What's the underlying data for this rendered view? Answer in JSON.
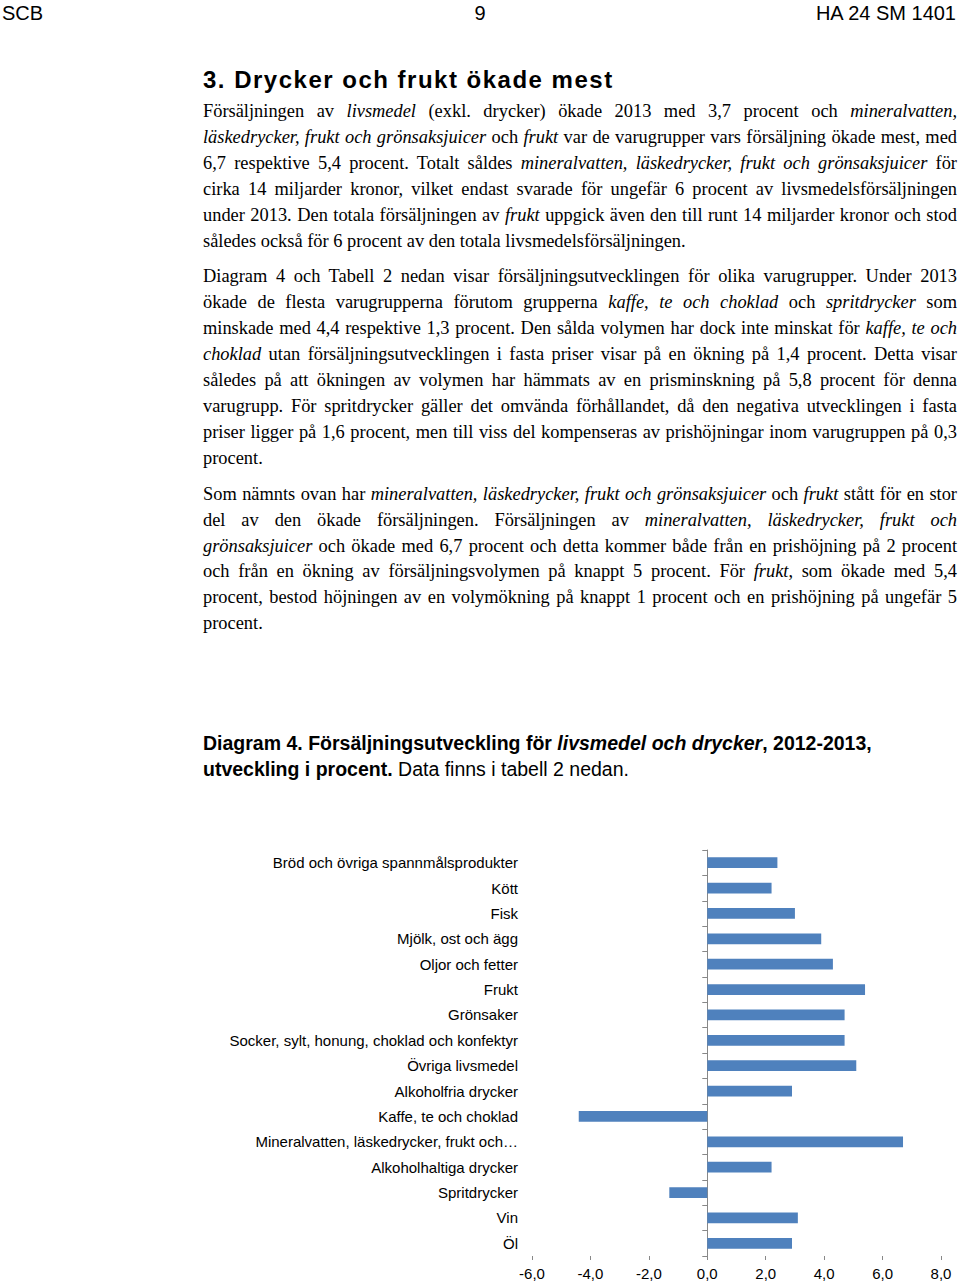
{
  "header": {
    "left": "SCB",
    "center": "9",
    "right": "HA 24 SM 1401"
  },
  "heading": "3. Drycker och frukt ökade mest",
  "paragraphs": [
    [
      {
        "text": "Försäljningen av "
      },
      {
        "text": "livsmedel",
        "italic": true
      },
      {
        "text": " (exkl. drycker) ökade 2013 med 3,7 procent och "
      },
      {
        "text": "mineralvatten, läskedrycker, frukt och grönsaksjuicer",
        "italic": true
      },
      {
        "text": " och "
      },
      {
        "text": "frukt",
        "italic": true
      },
      {
        "text": " var de varugrupper vars försäljning ökade mest, med 6,7 respektive 5,4 procent. Totalt såldes "
      },
      {
        "text": "mineralvatten, läskedrycker, frukt och grönsaksjuicer",
        "italic": true
      },
      {
        "text": " för cirka 14 miljarder kronor, vilket endast svarade för ungefär 6 procent av livsmedelsförsäljningen under 2013. Den totala försäljningen av "
      },
      {
        "text": "frukt",
        "italic": true
      },
      {
        "text": " uppgick även den till runt 14 miljarder kronor och stod således också för 6 procent av den totala livsmedelsförsäljningen."
      }
    ],
    [
      {
        "text": "Diagram 4 och Tabell 2 nedan visar försäljningsutvecklingen för olika varugrupper. Under 2013 ökade de flesta varugrupperna förutom grupperna "
      },
      {
        "text": "kaffe, te och choklad",
        "italic": true
      },
      {
        "text": " och "
      },
      {
        "text": "spritdrycker",
        "italic": true
      },
      {
        "text": " som minskade med 4,4 respektive 1,3 procent. Den sålda volymen har dock inte minskat för "
      },
      {
        "text": "kaffe, te och choklad",
        "italic": true
      },
      {
        "text": " utan försäljningsutvecklingen i fasta priser visar på en ökning på 1,4 procent. Detta visar således på att ökningen av volymen har hämmats av en prisminskning på 5,8 procent för denna varugrupp. För spritdrycker gäller det omvända förhållandet, då den negativa utvecklingen i fasta priser ligger på 1,6 procent, men till viss del kompenseras av prishöjningar inom varugruppen på 0,3 procent."
      }
    ],
    [
      {
        "text": "Som nämnts ovan har "
      },
      {
        "text": "mineralvatten, läskedrycker, frukt och grönsaksjuicer",
        "italic": true
      },
      {
        "text": " och "
      },
      {
        "text": "frukt",
        "italic": true
      },
      {
        "text": " stått för en stor del av den ökade försäljningen. Försäljningen av "
      },
      {
        "text": "mineralvatten, läskedrycker, frukt och grönsaksjuicer",
        "italic": true
      },
      {
        "text": " och ökade med 6,7 procent och detta kommer både från en prishöjning på 2 procent och från en ökning av försäljningsvolymen på knappt 5 procent. För "
      },
      {
        "text": "frukt",
        "italic": true
      },
      {
        "text": ", som ökade med 5,4 procent, bestod höjningen av en volymökning på knappt 1 procent och en prishöjning på ungefär 5 procent."
      }
    ]
  ],
  "caption": [
    {
      "text": "Diagram 4. Försäljningsutveckling för ",
      "bold": true
    },
    {
      "text": "livsmedel och drycker",
      "bold": true,
      "italic": true
    },
    {
      "text": ", 2012-2013, utveckling i procent.",
      "bold": true
    },
    {
      "text": " Data finns i tabell 2 nedan."
    }
  ],
  "chart_data": {
    "type": "bar",
    "orientation": "horizontal",
    "categories": [
      "Bröd och övriga spannmålsprodukter",
      "Kött",
      "Fisk",
      "Mjölk, ost och ägg",
      "Oljor och fetter",
      "Frukt",
      "Grönsaker",
      "Socker, sylt, honung, choklad och konfektyr",
      "Övriga livsmedel",
      "Alkoholfria drycker",
      "Kaffe, te och choklad",
      "Mineralvatten, läskedrycker, frukt och…",
      "Alkoholhaltiga drycker",
      "Spritdrycker",
      "Vin",
      "Öl"
    ],
    "values": [
      2.4,
      2.2,
      3.0,
      3.9,
      4.3,
      5.4,
      4.7,
      4.7,
      5.1,
      2.9,
      -4.4,
      6.7,
      2.2,
      -1.3,
      3.1,
      2.9
    ],
    "color": "#4f81bd",
    "xlim": [
      -6,
      8
    ],
    "xticks": [
      {
        "value": -6,
        "label": "-6,0"
      },
      {
        "value": -4,
        "label": "-4,0"
      },
      {
        "value": -2,
        "label": "-2,0"
      },
      {
        "value": 0,
        "label": "0,0"
      },
      {
        "value": 2,
        "label": "2,0"
      },
      {
        "value": 4,
        "label": "4,0"
      },
      {
        "value": 6,
        "label": "6,0"
      },
      {
        "value": 8,
        "label": "8,0"
      }
    ],
    "grid": false
  }
}
